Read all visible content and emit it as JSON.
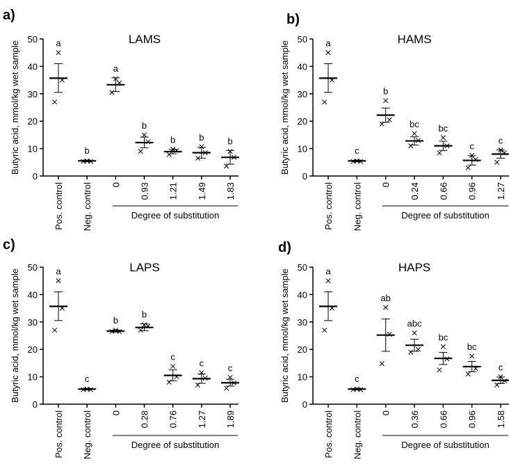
{
  "chart_data": [
    {
      "type": "scatter",
      "panel": "a)",
      "title": "LAMS",
      "ylabel": "Butyric acid, mmol/kg wet sample",
      "ylim": [
        0,
        50
      ],
      "yticks": [
        0,
        10,
        20,
        30,
        40,
        50
      ],
      "categories": [
        "Pos. control",
        "Neg. control",
        "0",
        "0.93",
        "1.21",
        "1.49",
        "1.83"
      ],
      "group_label": "Degree of substitution",
      "mean": [
        35.7,
        5.5,
        33.3,
        12.2,
        8.9,
        8.5,
        6.8
      ],
      "err_lo": [
        30.5,
        5.2,
        30.8,
        10.3,
        8.1,
        6.5,
        4.3
      ],
      "err_hi": [
        41.0,
        5.8,
        35.8,
        14.2,
        9.7,
        10.5,
        9.3
      ],
      "points": [
        [
          45,
          35,
          27
        ],
        [
          5.5,
          5.3,
          5.3
        ],
        [
          35.5,
          34,
          30.5
        ],
        [
          15,
          12.5,
          9
        ],
        [
          9.8,
          9.3,
          7.8
        ],
        [
          10.7,
          8.5,
          6.5
        ],
        [
          9,
          6.8,
          3.6
        ]
      ],
      "letters": [
        "a",
        "b",
        "a",
        "b",
        "b",
        "b",
        "b"
      ]
    },
    {
      "type": "scatter",
      "panel": "b)",
      "title": "HAMS",
      "ylabel": "Butyric acid, mmol/kg wet sample",
      "ylim": [
        0,
        50
      ],
      "yticks": [
        0,
        10,
        20,
        30,
        40,
        50
      ],
      "categories": [
        "Pos. control",
        "Neg. control",
        "0",
        "0.24",
        "0.66",
        "0.96",
        "1.27"
      ],
      "group_label": "Degree of substitution",
      "mean": [
        35.7,
        5.5,
        22.2,
        12.8,
        11.0,
        5.7,
        8.0
      ],
      "err_lo": [
        30.5,
        5.2,
        19.6,
        11.3,
        9.3,
        4.0,
        6.5
      ],
      "err_hi": [
        41.0,
        5.8,
        24.8,
        14.3,
        12.7,
        7.4,
        9.5
      ],
      "points": [
        [
          45,
          35,
          27
        ],
        [
          5.5,
          5.3,
          5.3
        ],
        [
          27.5,
          20.5,
          19
        ],
        [
          15.5,
          13,
          11
        ],
        [
          14,
          11,
          8.4
        ],
        [
          7.5,
          6,
          3
        ],
        [
          9.5,
          8.5,
          5
        ]
      ],
      "letters": [
        "a",
        "c",
        "b",
        "bc",
        "bc",
        "c",
        "c"
      ]
    },
    {
      "type": "scatter",
      "panel": "c)",
      "title": "LAPS",
      "ylabel": "Butyric acid, mmol/kg wet sample",
      "ylim": [
        0,
        50
      ],
      "yticks": [
        0,
        10,
        20,
        30,
        40,
        50
      ],
      "categories": [
        "Pos. control",
        "Neg. control",
        "0",
        "0.28",
        "0.76",
        "1.27",
        "1.89"
      ],
      "group_label": "Degree of substitution",
      "mean": [
        35.7,
        5.5,
        26.7,
        28.0,
        10.5,
        9.3,
        7.8
      ],
      "err_lo": [
        30.5,
        5.2,
        26.3,
        26.8,
        8.5,
        7.6,
        6.6
      ],
      "err_hi": [
        41.0,
        5.8,
        27.1,
        29.3,
        12.5,
        11.0,
        9.1
      ],
      "points": [
        [
          45,
          35,
          27
        ],
        [
          5.5,
          5.3,
          5.3
        ],
        [
          27,
          26.5,
          26.5
        ],
        [
          29,
          28.5,
          27
        ],
        [
          13.8,
          10,
          8
        ],
        [
          11.5,
          9.5,
          7
        ],
        [
          9.8,
          7.8,
          5.8
        ]
      ],
      "letters": [
        "a",
        "c",
        "b",
        "b",
        "c",
        "c",
        "c"
      ]
    },
    {
      "type": "scatter",
      "panel": "d)",
      "title": "HAPS",
      "ylabel": "Butyric acid, mmol/kg wet sample",
      "ylim": [
        0,
        50
      ],
      "yticks": [
        0,
        10,
        20,
        30,
        40,
        50
      ],
      "categories": [
        "Pos. control",
        "Neg. control",
        "0",
        "0.36",
        "0.66",
        "0.96",
        "1.58"
      ],
      "group_label": "Degree of substitution",
      "mean": [
        35.7,
        5.5,
        25.2,
        21.5,
        16.7,
        13.7,
        8.7
      ],
      "err_lo": [
        30.5,
        5.2,
        19.3,
        19.3,
        14.5,
        11.8,
        7.5
      ],
      "err_hi": [
        41.0,
        5.8,
        31.1,
        23.7,
        18.9,
        15.6,
        9.9
      ],
      "points": [
        [
          45,
          35,
          27
        ],
        [
          5.5,
          5.3,
          5.3
        ],
        [
          35.3,
          25.5,
          14.8
        ],
        [
          26,
          20,
          19
        ],
        [
          21,
          16.5,
          12.5
        ],
        [
          17.5,
          13,
          11
        ],
        [
          10,
          8.5,
          7
        ]
      ],
      "letters": [
        "a",
        "c",
        "ab",
        "abc",
        "bc",
        "bc",
        "c"
      ]
    }
  ]
}
